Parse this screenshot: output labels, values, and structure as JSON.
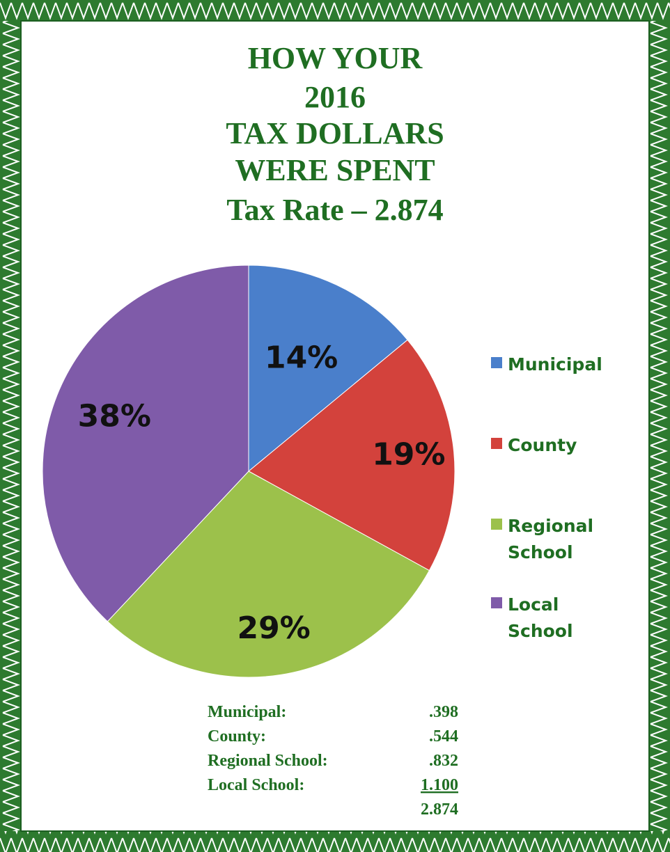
{
  "chart_data": {
    "type": "pie",
    "title": [
      "HOW YOUR",
      "2016",
      "TAX DOLLARS",
      "WERE SPENT",
      "Tax Rate – 2.874"
    ],
    "categories": [
      "Municipal",
      "County",
      "Regional School",
      "Local School"
    ],
    "values": [
      14,
      19,
      29,
      38
    ],
    "value_labels": [
      "14%",
      "19%",
      "29%",
      "38%"
    ],
    "colors": [
      "#4a7fcb",
      "#d3423c",
      "#9cc14b",
      "#7f5ba9"
    ],
    "legend": "right"
  },
  "table": {
    "rows": [
      [
        "Municipal:",
        ".398"
      ],
      [
        "County:",
        ".544"
      ],
      [
        "Regional School:",
        ".832"
      ],
      [
        "Local School:",
        "1.100"
      ]
    ],
    "total": "2.874"
  }
}
